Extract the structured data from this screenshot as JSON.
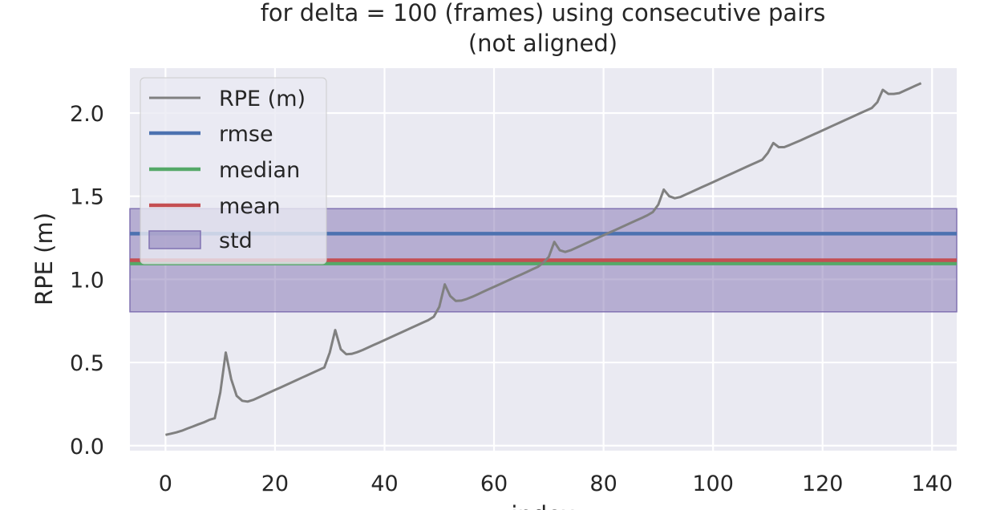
{
  "chart_data": {
    "type": "line",
    "title_lines": [
      "for delta = 100 (frames) using consecutive pairs",
      "(not aligned)"
    ],
    "xlabel": "index",
    "ylabel": "RPE (m)",
    "xlim": [
      -6.5,
      144.5
    ],
    "ylim": [
      -0.03,
      2.27
    ],
    "xticks": [
      0,
      20,
      40,
      60,
      80,
      100,
      120,
      140
    ],
    "yticks": [
      0.0,
      0.5,
      1.0,
      1.5,
      2.0
    ],
    "ytick_labels": [
      "0.0",
      "0.5",
      "1.0",
      "1.5",
      "2.0"
    ],
    "grid": true,
    "legend_position": "top-left",
    "background": "#eaeaf2",
    "series": [
      {
        "name": "RPE (m)",
        "color": "#808080",
        "x": [
          0,
          1,
          2,
          3,
          4,
          5,
          6,
          7,
          8,
          9,
          10,
          11,
          12,
          13,
          14,
          15,
          16,
          17,
          18,
          19,
          20,
          21,
          22,
          23,
          24,
          25,
          26,
          27,
          28,
          29,
          30,
          31,
          32,
          33,
          34,
          35,
          36,
          37,
          38,
          39,
          40,
          41,
          42,
          43,
          44,
          45,
          46,
          47,
          48,
          49,
          50,
          51,
          52,
          53,
          54,
          55,
          56,
          57,
          58,
          59,
          60,
          61,
          62,
          63,
          64,
          65,
          66,
          67,
          68,
          69,
          70,
          71,
          72,
          73,
          74,
          75,
          76,
          77,
          78,
          79,
          80,
          81,
          82,
          83,
          84,
          85,
          86,
          87,
          88,
          89,
          90,
          91,
          92,
          93,
          94,
          95,
          96,
          97,
          98,
          99,
          100,
          101,
          102,
          103,
          104,
          105,
          106,
          107,
          108,
          109,
          110,
          111,
          112,
          113,
          114,
          115,
          116,
          117,
          118,
          119,
          120,
          121,
          122,
          123,
          124,
          125,
          126,
          127,
          128,
          129,
          130,
          131,
          132,
          133,
          134,
          135,
          136,
          137,
          138
        ],
        "y": [
          0.065,
          0.072,
          0.08,
          0.09,
          0.103,
          0.115,
          0.128,
          0.14,
          0.155,
          0.165,
          0.32,
          0.56,
          0.4,
          0.3,
          0.27,
          0.265,
          0.275,
          0.29,
          0.305,
          0.32,
          0.335,
          0.35,
          0.365,
          0.38,
          0.395,
          0.41,
          0.425,
          0.44,
          0.455,
          0.47,
          0.56,
          0.695,
          0.58,
          0.55,
          0.552,
          0.562,
          0.575,
          0.59,
          0.605,
          0.62,
          0.635,
          0.65,
          0.665,
          0.68,
          0.695,
          0.71,
          0.725,
          0.74,
          0.755,
          0.775,
          0.835,
          0.97,
          0.9,
          0.87,
          0.872,
          0.882,
          0.895,
          0.91,
          0.925,
          0.94,
          0.955,
          0.97,
          0.985,
          1.0,
          1.015,
          1.03,
          1.045,
          1.06,
          1.075,
          1.1,
          1.135,
          1.225,
          1.175,
          1.165,
          1.175,
          1.19,
          1.205,
          1.22,
          1.235,
          1.25,
          1.265,
          1.28,
          1.295,
          1.31,
          1.325,
          1.34,
          1.355,
          1.37,
          1.385,
          1.405,
          1.45,
          1.54,
          1.5,
          1.488,
          1.495,
          1.51,
          1.525,
          1.54,
          1.555,
          1.57,
          1.585,
          1.6,
          1.615,
          1.63,
          1.645,
          1.66,
          1.675,
          1.69,
          1.705,
          1.72,
          1.76,
          1.82,
          1.795,
          1.795,
          1.808,
          1.822,
          1.836,
          1.851,
          1.866,
          1.881,
          1.896,
          1.911,
          1.926,
          1.941,
          1.956,
          1.971,
          1.986,
          2.001,
          2.016,
          2.031,
          2.065,
          2.14,
          2.115,
          2.115,
          2.12,
          2.135,
          2.15,
          2.165,
          2.18
        ]
      }
    ],
    "stats": {
      "rmse": {
        "name": "rmse",
        "value": 1.275,
        "color": "#4c72b0"
      },
      "median": {
        "name": "median",
        "value": 1.095,
        "color": "#55a868"
      },
      "mean": {
        "name": "mean",
        "value": 1.115,
        "color": "#c44e52"
      },
      "std": {
        "name": "std",
        "lower": 0.805,
        "upper": 1.425,
        "color": "#8172b2"
      }
    },
    "legend": [
      "RPE (m)",
      "rmse",
      "median",
      "mean",
      "std"
    ]
  }
}
